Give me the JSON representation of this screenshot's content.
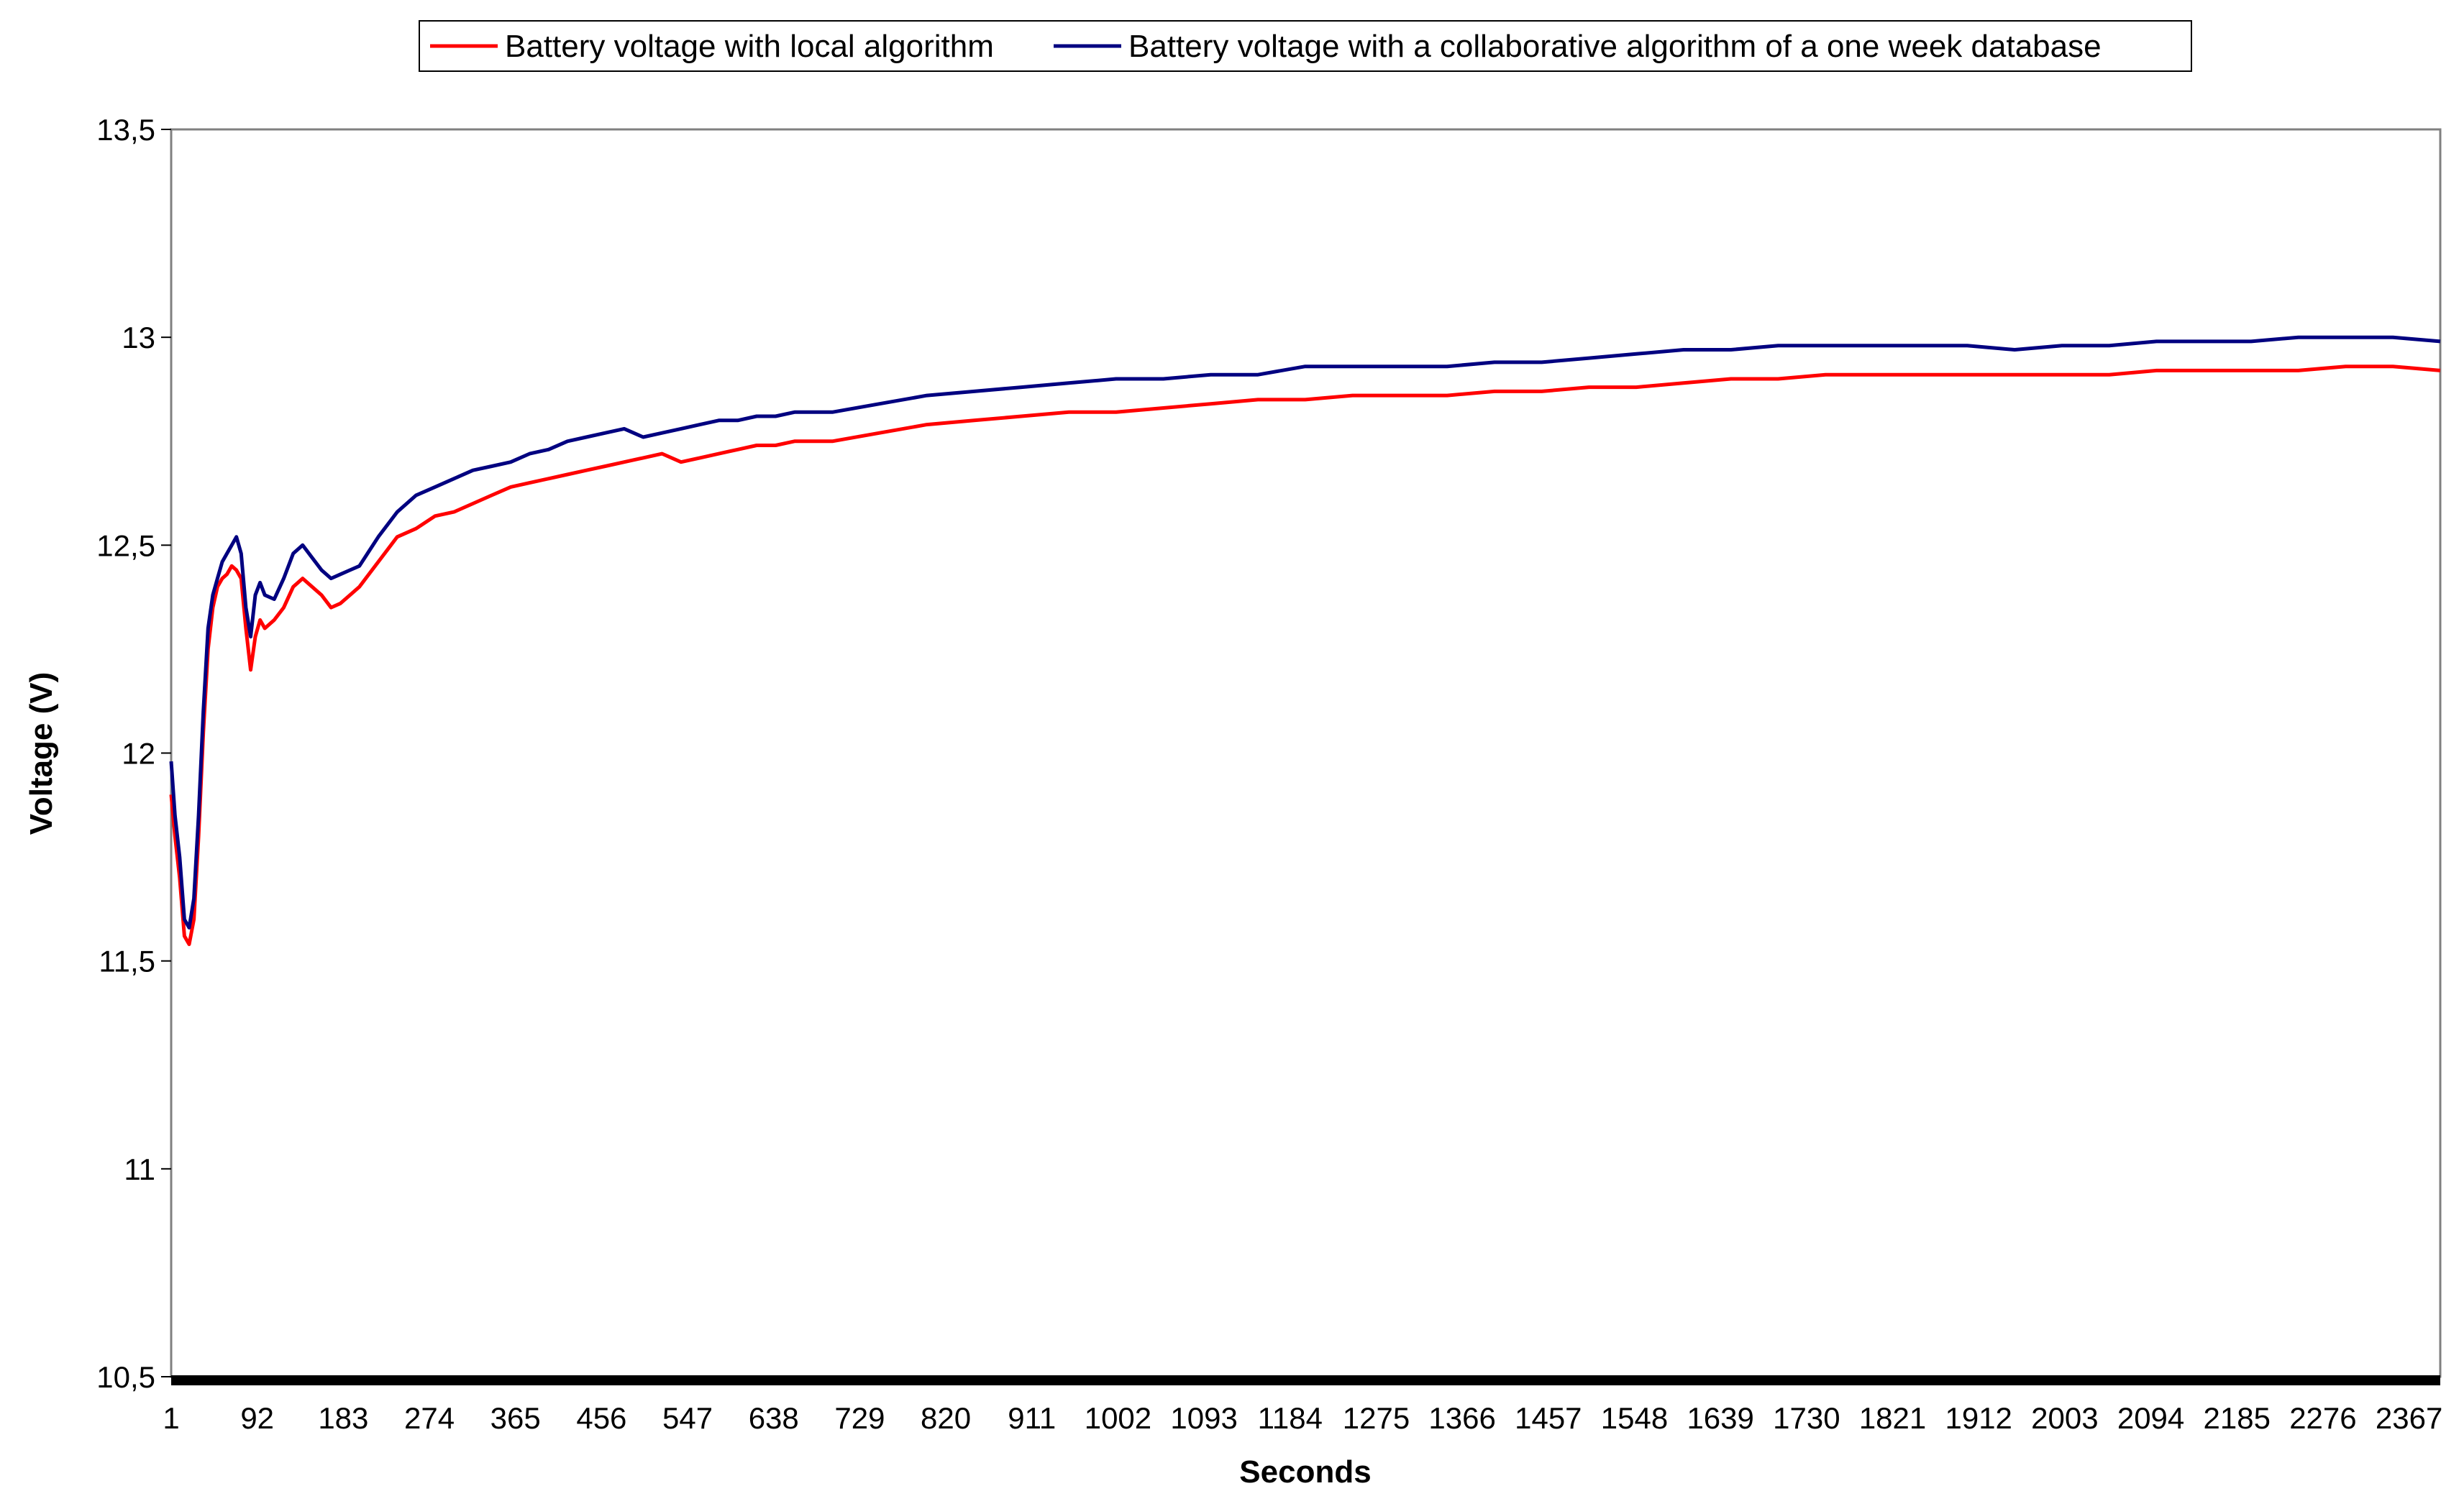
{
  "chart_data": {
    "type": "line",
    "xlabel": "Seconds",
    "ylabel": "Voltage (V)",
    "ylim": [
      10.5,
      13.5
    ],
    "xlim": [
      1,
      2400
    ],
    "y_ticks": [
      10.5,
      11,
      11.5,
      12,
      12.5,
      13,
      13.5
    ],
    "y_tick_labels": [
      "10,5",
      "11",
      "11,5",
      "12",
      "12,5",
      "13",
      "13,5"
    ],
    "x_tick_labels": [
      "1",
      "92",
      "183",
      "274",
      "365",
      "456",
      "547",
      "638",
      "729",
      "820",
      "911",
      "1002",
      "1093",
      "1184",
      "1275",
      "1366",
      "1457",
      "1548",
      "1639",
      "1730",
      "1821",
      "1912",
      "2003",
      "2094",
      "2185",
      "2276",
      "2367"
    ],
    "x_tick_values": [
      1,
      92,
      183,
      274,
      365,
      456,
      547,
      638,
      729,
      820,
      911,
      1002,
      1093,
      1184,
      1275,
      1366,
      1457,
      1548,
      1639,
      1730,
      1821,
      1912,
      2003,
      2094,
      2185,
      2276,
      2367
    ],
    "grid": false,
    "legend_position": "top",
    "series": [
      {
        "name": "Battery voltage with local algorithm",
        "color": "#ff0000",
        "x": [
          1,
          5,
          10,
          15,
          20,
          25,
          30,
          35,
          40,
          45,
          50,
          55,
          60,
          65,
          70,
          75,
          80,
          85,
          90,
          95,
          100,
          110,
          120,
          130,
          140,
          150,
          160,
          170,
          180,
          190,
          200,
          220,
          240,
          260,
          280,
          300,
          320,
          340,
          360,
          380,
          400,
          420,
          440,
          460,
          480,
          500,
          520,
          540,
          560,
          580,
          600,
          620,
          640,
          660,
          680,
          700,
          750,
          800,
          850,
          900,
          950,
          1000,
          1050,
          1100,
          1150,
          1200,
          1250,
          1300,
          1350,
          1400,
          1450,
          1500,
          1550,
          1600,
          1650,
          1700,
          1750,
          1800,
          1850,
          1900,
          1950,
          2000,
          2050,
          2100,
          2150,
          2200,
          2250,
          2300,
          2350,
          2400
        ],
        "y": [
          11.9,
          11.8,
          11.7,
          11.56,
          11.54,
          11.6,
          11.8,
          12.05,
          12.25,
          12.35,
          12.4,
          12.42,
          12.43,
          12.45,
          12.44,
          12.42,
          12.3,
          12.2,
          12.28,
          12.32,
          12.3,
          12.32,
          12.35,
          12.4,
          12.42,
          12.4,
          12.38,
          12.35,
          12.36,
          12.38,
          12.4,
          12.46,
          12.52,
          12.54,
          12.57,
          12.58,
          12.6,
          12.62,
          12.64,
          12.65,
          12.66,
          12.67,
          12.68,
          12.69,
          12.7,
          12.71,
          12.72,
          12.7,
          12.71,
          12.72,
          12.73,
          12.74,
          12.74,
          12.75,
          12.75,
          12.75,
          12.77,
          12.79,
          12.8,
          12.81,
          12.82,
          12.82,
          12.83,
          12.84,
          12.85,
          12.85,
          12.86,
          12.86,
          12.86,
          12.87,
          12.87,
          12.88,
          12.88,
          12.89,
          12.9,
          12.9,
          12.91,
          12.91,
          12.91,
          12.91,
          12.91,
          12.91,
          12.91,
          12.92,
          12.92,
          12.92,
          12.92,
          12.93,
          12.93,
          12.92
        ]
      },
      {
        "name": "Battery voltage with a collaborative algorithm of a one week database",
        "color": "#000080",
        "x": [
          1,
          5,
          10,
          15,
          20,
          25,
          30,
          35,
          40,
          45,
          50,
          55,
          60,
          65,
          70,
          75,
          80,
          85,
          90,
          95,
          100,
          110,
          120,
          130,
          140,
          150,
          160,
          170,
          180,
          190,
          200,
          220,
          240,
          260,
          280,
          300,
          320,
          340,
          360,
          380,
          400,
          420,
          440,
          460,
          480,
          500,
          520,
          540,
          560,
          580,
          600,
          620,
          640,
          660,
          680,
          700,
          750,
          800,
          850,
          900,
          950,
          1000,
          1050,
          1100,
          1150,
          1200,
          1250,
          1300,
          1350,
          1400,
          1450,
          1500,
          1550,
          1600,
          1650,
          1700,
          1750,
          1800,
          1850,
          1900,
          1950,
          2000,
          2050,
          2100,
          2150,
          2200,
          2250,
          2300,
          2350,
          2400
        ],
        "y": [
          11.98,
          11.85,
          11.75,
          11.6,
          11.58,
          11.65,
          11.85,
          12.1,
          12.3,
          12.38,
          12.42,
          12.46,
          12.48,
          12.5,
          12.52,
          12.48,
          12.35,
          12.28,
          12.38,
          12.41,
          12.38,
          12.37,
          12.42,
          12.48,
          12.5,
          12.47,
          12.44,
          12.42,
          12.43,
          12.44,
          12.45,
          12.52,
          12.58,
          12.62,
          12.64,
          12.66,
          12.68,
          12.69,
          12.7,
          12.72,
          12.73,
          12.75,
          12.76,
          12.77,
          12.78,
          12.76,
          12.77,
          12.78,
          12.79,
          12.8,
          12.8,
          12.81,
          12.81,
          12.82,
          12.82,
          12.82,
          12.84,
          12.86,
          12.87,
          12.88,
          12.89,
          12.9,
          12.9,
          12.91,
          12.91,
          12.93,
          12.93,
          12.93,
          12.93,
          12.94,
          12.94,
          12.95,
          12.96,
          12.97,
          12.97,
          12.98,
          12.98,
          12.98,
          12.98,
          12.98,
          12.97,
          12.98,
          12.98,
          12.99,
          12.99,
          12.99,
          13.0,
          13.0,
          13.0,
          12.99
        ]
      }
    ]
  }
}
